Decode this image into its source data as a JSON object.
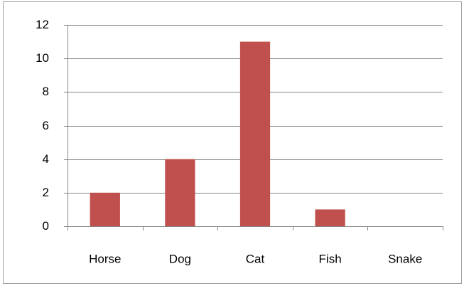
{
  "chart_data": {
    "type": "bar",
    "categories": [
      "Horse",
      "Dog",
      "Cat",
      "Fish",
      "Snake"
    ],
    "values": [
      2,
      4,
      11,
      1,
      0
    ],
    "color": "#c0504d",
    "ylim": [
      0,
      12
    ],
    "yticks": [
      0,
      2,
      4,
      6,
      8,
      10,
      12
    ],
    "grid": true
  }
}
